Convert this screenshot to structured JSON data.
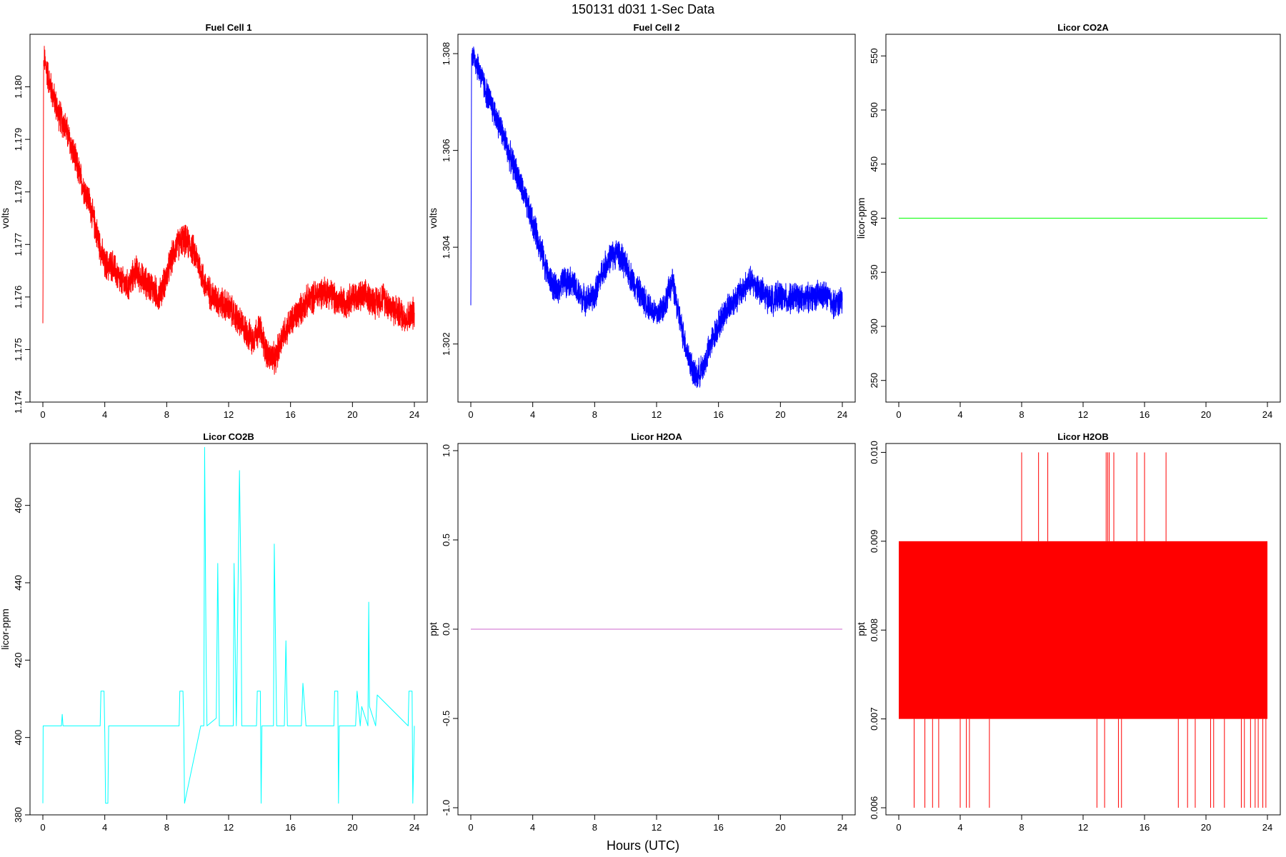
{
  "figure": {
    "title": "150131   d031   1-Sec Data",
    "xlabel": "Hours (UTC)"
  },
  "chart_data": [
    {
      "type": "line",
      "title": "Fuel Cell 1",
      "ylabel": "volts",
      "xlim": [
        0,
        24
      ],
      "ylim": [
        1.174,
        1.181
      ],
      "x_ticks": [
        0,
        4,
        8,
        12,
        16,
        20,
        24
      ],
      "y_ticks": [
        1.174,
        1.175,
        1.176,
        1.177,
        1.178,
        1.179,
        1.18
      ],
      "y_tick_labels": [
        "1.174",
        "1.175",
        "1.176",
        "1.177",
        "1.178",
        "1.179",
        "1.180"
      ],
      "color": "#ff0000",
      "noise": 0.00032,
      "series": [
        {
          "x": [
            0,
            0.05,
            0.1,
            0.5,
            1,
            1.5,
            2,
            2.5,
            3,
            3.5,
            4,
            4.5,
            5,
            5.5,
            6,
            6.5,
            7,
            7.5,
            8,
            8.5,
            9,
            9.5,
            10,
            10.5,
            11,
            11.5,
            12,
            12.5,
            13,
            13.5,
            14,
            14.5,
            15,
            15.5,
            16,
            16.5,
            17,
            17.5,
            18,
            18.5,
            19,
            19.5,
            20,
            20.5,
            21,
            21.5,
            22,
            22.5,
            23,
            23.5,
            24
          ],
          "y": [
            1.1755,
            1.1805,
            1.1805,
            1.18,
            1.1795,
            1.1792,
            1.1787,
            1.1782,
            1.1778,
            1.1772,
            1.1766,
            1.1766,
            1.1763,
            1.1762,
            1.1765,
            1.1763,
            1.1762,
            1.176,
            1.1764,
            1.1769,
            1.1771,
            1.177,
            1.1767,
            1.1762,
            1.176,
            1.1759,
            1.1758,
            1.1756,
            1.1754,
            1.1752,
            1.1754,
            1.1749,
            1.1748,
            1.1753,
            1.1755,
            1.1757,
            1.1759,
            1.176,
            1.1761,
            1.1761,
            1.1759,
            1.1759,
            1.176,
            1.176,
            1.176,
            1.1759,
            1.176,
            1.1758,
            1.1757,
            1.1756,
            1.1757
          ]
        }
      ]
    },
    {
      "type": "line",
      "title": "Fuel Cell 2",
      "ylabel": "volts",
      "xlim": [
        0,
        24
      ],
      "ylim": [
        1.3008,
        1.3084
      ],
      "x_ticks": [
        0,
        4,
        8,
        12,
        16,
        20,
        24
      ],
      "y_ticks": [
        1.302,
        1.304,
        1.306,
        1.308
      ],
      "y_tick_labels": [
        "1.302",
        "1.304",
        "1.306",
        "1.308"
      ],
      "color": "#0000ff",
      "noise": 0.00032,
      "series": [
        {
          "x": [
            0,
            0.05,
            0.1,
            0.5,
            1,
            1.5,
            2,
            2.5,
            3,
            3.5,
            4,
            4.5,
            5,
            5.5,
            6,
            6.5,
            7,
            7.5,
            8,
            8.5,
            9,
            9.5,
            10,
            10.5,
            11,
            11.5,
            12,
            12.5,
            13,
            13.5,
            14,
            14.5,
            15,
            15.5,
            16,
            16.5,
            17,
            17.5,
            18,
            18.5,
            19,
            19.5,
            20,
            20.5,
            21,
            21.5,
            22,
            22.5,
            23,
            23.5,
            24
          ],
          "y": [
            1.3028,
            1.308,
            1.308,
            1.3077,
            1.3072,
            1.3068,
            1.3064,
            1.3059,
            1.3055,
            1.305,
            1.3045,
            1.304,
            1.3034,
            1.3031,
            1.3033,
            1.3033,
            1.303,
            1.3029,
            1.303,
            1.3035,
            1.3038,
            1.3039,
            1.3036,
            1.3033,
            1.303,
            1.3028,
            1.3026,
            1.3028,
            1.3033,
            1.3025,
            1.3018,
            1.3013,
            1.3015,
            1.302,
            1.3024,
            1.3027,
            1.3029,
            1.3031,
            1.3033,
            1.3032,
            1.303,
            1.3029,
            1.303,
            1.3029,
            1.303,
            1.3029,
            1.303,
            1.303,
            1.303,
            1.3028,
            1.3029
          ]
        }
      ]
    },
    {
      "type": "line",
      "title": "Licor CO2A",
      "ylabel": "licor-ppm",
      "xlim": [
        0,
        24
      ],
      "ylim": [
        230,
        570
      ],
      "x_ticks": [
        0,
        4,
        8,
        12,
        16,
        20,
        24
      ],
      "y_ticks": [
        250,
        300,
        350,
        400,
        450,
        500,
        550
      ],
      "y_tick_labels": [
        "250",
        "300",
        "350",
        "400",
        "450",
        "500",
        "550"
      ],
      "color": "#00ff00",
      "series": [
        {
          "x": [
            0,
            24
          ],
          "y": [
            400,
            400
          ]
        }
      ]
    },
    {
      "type": "line",
      "title": "Licor CO2B",
      "ylabel": "licor-ppm",
      "xlim": [
        0,
        24
      ],
      "ylim": [
        380,
        476
      ],
      "x_ticks": [
        0,
        4,
        8,
        12,
        16,
        20,
        24
      ],
      "y_ticks": [
        380,
        400,
        420,
        440,
        460
      ],
      "y_tick_labels": [
        "380",
        "400",
        "420",
        "440",
        "460"
      ],
      "color": "#00ffff",
      "series": [
        {
          "x": [
            0,
            0.02,
            0.06,
            0.1,
            1.2,
            1.25,
            1.3,
            3.7,
            3.75,
            3.95,
            4.0,
            4.05,
            4.2,
            4.25,
            8.8,
            8.85,
            9.05,
            9.1,
            9.15,
            10.2,
            10.4,
            10.45,
            10.55,
            10.6,
            11.2,
            11.3,
            11.4,
            11.5,
            12.3,
            12.35,
            12.5,
            12.7,
            12.8,
            12.85,
            13.0,
            13.8,
            13.85,
            14.05,
            14.1,
            14.15,
            14.9,
            14.95,
            15.1,
            15.6,
            15.7,
            15.8,
            16.7,
            16.8,
            17.0,
            18.8,
            18.85,
            19.05,
            19.1,
            19.15,
            20.2,
            20.3,
            20.5,
            20.6,
            21.0,
            21.05,
            21.1,
            21.5,
            21.6,
            23.6,
            23.65,
            23.85,
            23.9,
            24.0
          ],
          "y": [
            383,
            403,
            403,
            403,
            403,
            406,
            403,
            403,
            412,
            412,
            401,
            383,
            383,
            403,
            403,
            412,
            412,
            403,
            383,
            403,
            403,
            475,
            418,
            403,
            405,
            445,
            403,
            403,
            403,
            445,
            403,
            469,
            440,
            403,
            403,
            403,
            412,
            412,
            383,
            403,
            403,
            450,
            403,
            403,
            425,
            403,
            403,
            414,
            403,
            403,
            412,
            412,
            383,
            403,
            403,
            412,
            403,
            408,
            403,
            435,
            408,
            403,
            411,
            403,
            412,
            412,
            383,
            403
          ]
        }
      ]
    },
    {
      "type": "line",
      "title": "Licor H2OA",
      "ylabel": "ppt",
      "xlim": [
        0,
        24
      ],
      "ylim": [
        -1.04,
        1.04
      ],
      "x_ticks": [
        0,
        4,
        8,
        12,
        16,
        20,
        24
      ],
      "y_ticks": [
        -1.0,
        -0.5,
        0.0,
        0.5,
        1.0
      ],
      "y_tick_labels": [
        "-1.0",
        "-0.5",
        "0.0",
        "0.5",
        "1.0"
      ],
      "color": "#cc66cc",
      "series": [
        {
          "x": [
            0,
            24
          ],
          "y": [
            0,
            0
          ]
        }
      ]
    },
    {
      "type": "line",
      "title": "Licor H2OB",
      "ylabel": "ppt",
      "xlim": [
        0,
        24
      ],
      "ylim": [
        0.00592,
        0.0101
      ],
      "x_ticks": [
        0,
        4,
        8,
        12,
        16,
        20,
        24
      ],
      "y_ticks": [
        0.006,
        0.007,
        0.008,
        0.009,
        0.01
      ],
      "y_tick_labels": [
        "0.006",
        "0.007",
        "0.008",
        "0.009",
        "0.010"
      ],
      "color": "#ff0000",
      "band": [
        0.007,
        0.009
      ],
      "spikes_high": [
        8.0,
        9.1,
        9.7,
        13.5,
        13.6,
        13.7,
        14.0,
        15.5,
        16.0,
        17.4
      ],
      "spikes_low": [
        1.0,
        1.7,
        2.2,
        2.6,
        4.0,
        4.4,
        4.6,
        5.9,
        12.9,
        13.4,
        14.3,
        14.5,
        18.2,
        18.8,
        19.3,
        20.3,
        20.5,
        21.2,
        22.3,
        22.5,
        22.9,
        23.2,
        23.4,
        23.7,
        23.9
      ]
    }
  ]
}
